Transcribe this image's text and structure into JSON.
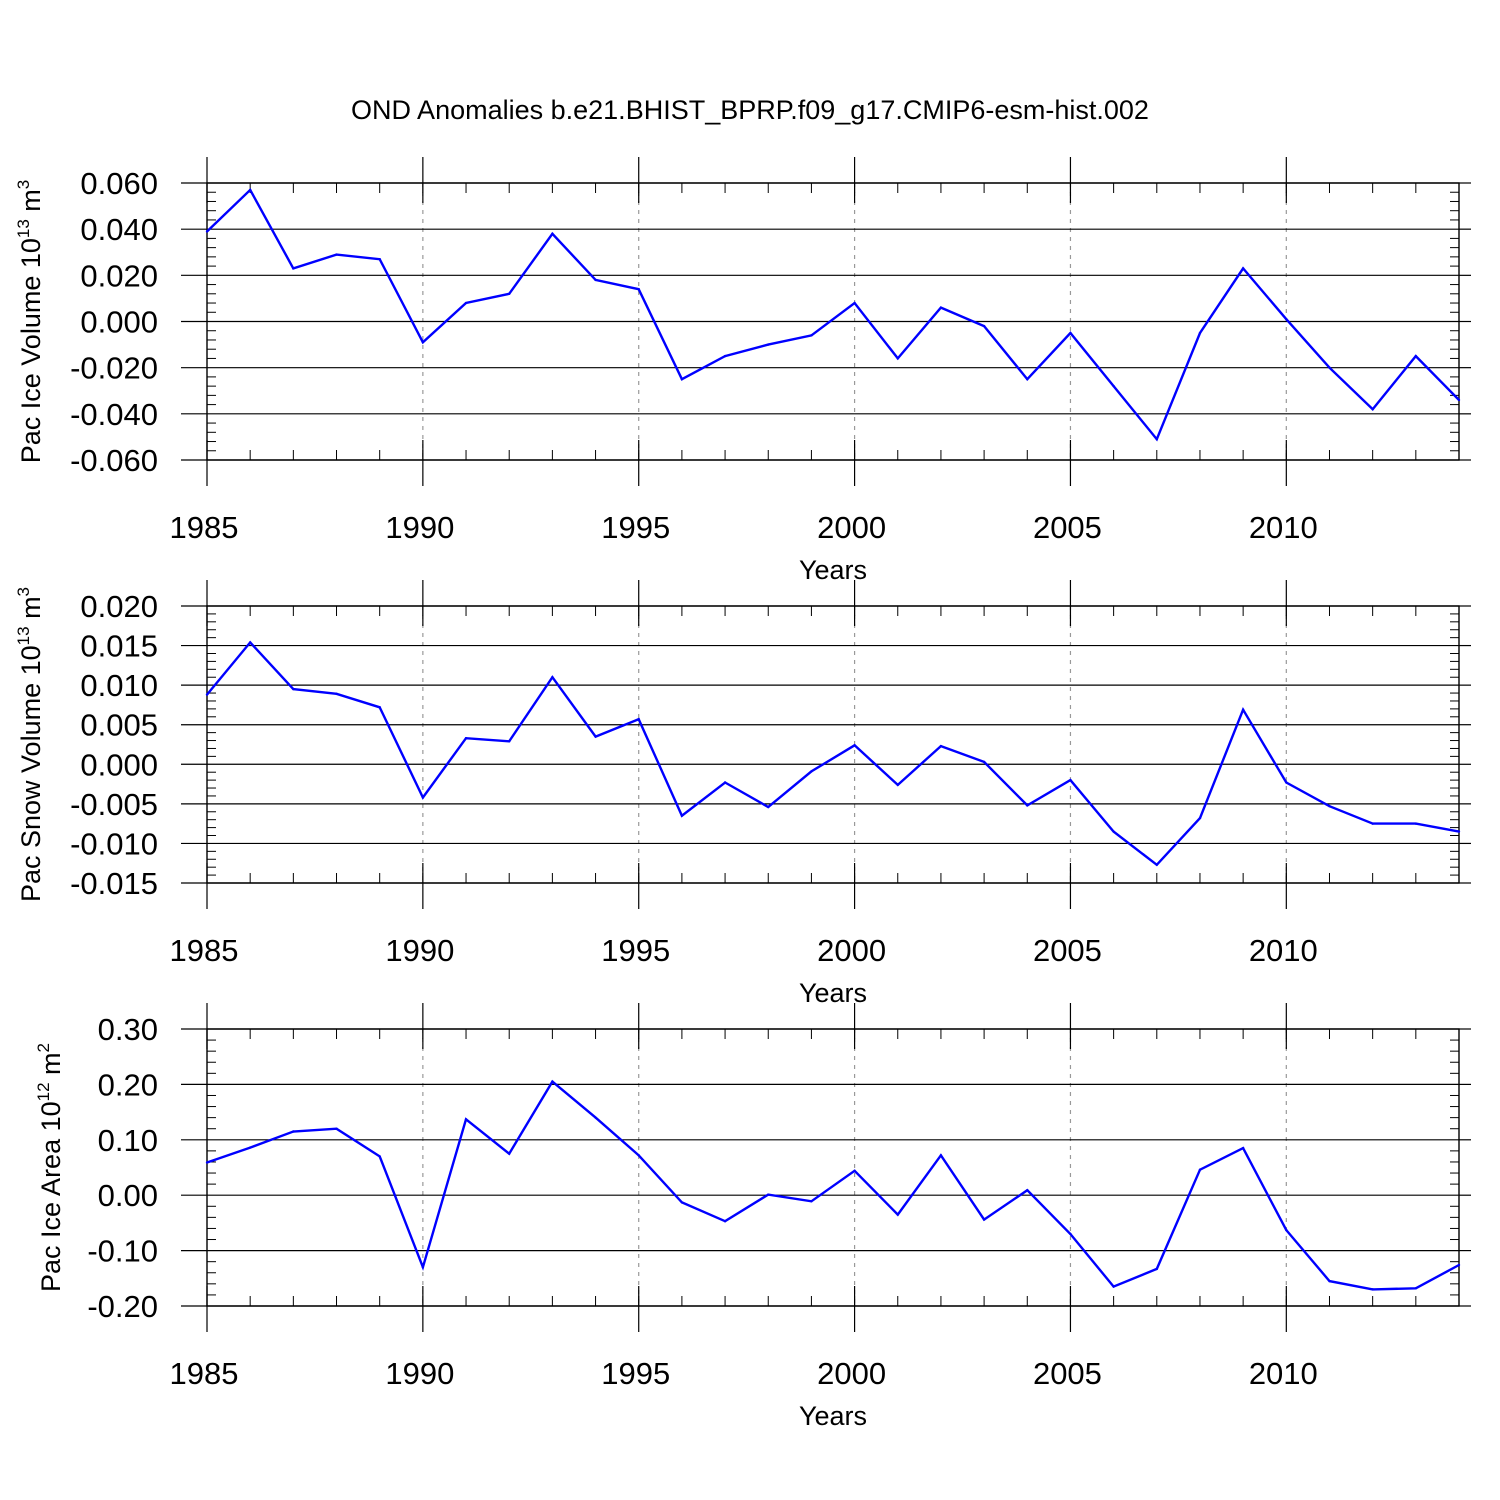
{
  "title": "OND Anomalies b.e21.BHIST_BPRP.f09_g17.CMIP6-esm-hist.002",
  "colors": {
    "line": "#0000ff",
    "axis": "#000000",
    "grid": "#999999"
  },
  "chart_data": [
    {
      "type": "line",
      "ylabel": {
        "main": "Pac Ice Volume 10",
        "sup": "13",
        "unit": " m",
        "unit_sup": "3"
      },
      "xlabel": "Years",
      "xlim": [
        1985,
        2014
      ],
      "ylim": [
        -0.06,
        0.06
      ],
      "yticks": [
        -0.06,
        -0.04,
        -0.02,
        0.0,
        0.02,
        0.04,
        0.06
      ],
      "ytick_labels": [
        "-0.060",
        "-0.040",
        "-0.020",
        "0.000",
        "0.020",
        "0.040",
        "0.060"
      ],
      "xticks": [
        1985,
        1990,
        1995,
        2000,
        2005,
        2010
      ],
      "xtick_labels": [
        "1985",
        "1990",
        "1995",
        "2000",
        "2005",
        "2010"
      ],
      "grid_x": [
        1990,
        1995,
        2000,
        2005,
        2010
      ],
      "x": [
        1985,
        1986,
        1987,
        1988,
        1989,
        1990,
        1991,
        1992,
        1993,
        1994,
        1995,
        1996,
        1997,
        1998,
        1999,
        2000,
        2001,
        2002,
        2003,
        2004,
        2005,
        2006,
        2007,
        2008,
        2009,
        2010,
        2011,
        2012,
        2013,
        2014
      ],
      "values": [
        0.039,
        0.057,
        0.023,
        0.029,
        0.027,
        -0.009,
        0.008,
        0.012,
        0.038,
        0.018,
        0.014,
        -0.025,
        -0.015,
        -0.01,
        -0.006,
        0.008,
        -0.016,
        0.006,
        -0.002,
        -0.025,
        -0.005,
        -0.028,
        -0.051,
        -0.005,
        0.023,
        0.001,
        -0.02,
        -0.038,
        -0.015,
        -0.034
      ]
    },
    {
      "type": "line",
      "ylabel": {
        "main": "Pac Snow Volume 10",
        "sup": "13",
        "unit": " m",
        "unit_sup": "3"
      },
      "xlabel": "Years",
      "xlim": [
        1985,
        2014
      ],
      "ylim": [
        -0.015,
        0.02
      ],
      "yticks": [
        -0.015,
        -0.01,
        -0.005,
        0.0,
        0.005,
        0.01,
        0.015,
        0.02
      ],
      "ytick_labels": [
        "-0.015",
        "-0.010",
        "-0.005",
        "0.000",
        "0.005",
        "0.010",
        "0.015",
        "0.020"
      ],
      "xticks": [
        1985,
        1990,
        1995,
        2000,
        2005,
        2010
      ],
      "xtick_labels": [
        "1985",
        "1990",
        "1995",
        "2000",
        "2005",
        "2010"
      ],
      "grid_x": [
        1990,
        1995,
        2000,
        2005,
        2010
      ],
      "x": [
        1985,
        1986,
        1987,
        1988,
        1989,
        1990,
        1991,
        1992,
        1993,
        1994,
        1995,
        1996,
        1997,
        1998,
        1999,
        2000,
        2001,
        2002,
        2003,
        2004,
        2005,
        2006,
        2007,
        2008,
        2009,
        2010,
        2011,
        2012,
        2013,
        2014
      ],
      "values": [
        0.0088,
        0.0154,
        0.0095,
        0.0089,
        0.0072,
        -0.0042,
        0.0033,
        0.0029,
        0.011,
        0.0035,
        0.0057,
        -0.0065,
        -0.0023,
        -0.0054,
        -0.0009,
        0.0024,
        -0.0026,
        0.0023,
        0.0003,
        -0.0052,
        -0.002,
        -0.0085,
        -0.0127,
        -0.0068,
        0.0069,
        -0.0023,
        -0.0053,
        -0.0075,
        -0.0075,
        -0.0085
      ]
    },
    {
      "type": "line",
      "ylabel": {
        "main": "Pac Ice Area 10",
        "sup": "12",
        "unit": " m",
        "unit_sup": "2"
      },
      "xlabel": "Years",
      "xlim": [
        1985,
        2014
      ],
      "ylim": [
        -0.2,
        0.3
      ],
      "yticks": [
        -0.2,
        -0.1,
        0.0,
        0.1,
        0.2,
        0.3
      ],
      "ytick_labels": [
        "-0.20",
        "-0.10",
        "0.00",
        "0.10",
        "0.20",
        "0.30"
      ],
      "xticks": [
        1985,
        1990,
        1995,
        2000,
        2005,
        2010
      ],
      "xtick_labels": [
        "1985",
        "1990",
        "1995",
        "2000",
        "2005",
        "2010"
      ],
      "grid_x": [
        1990,
        1995,
        2000,
        2005,
        2010
      ],
      "x": [
        1985,
        1986,
        1987,
        1988,
        1989,
        1990,
        1991,
        1992,
        1993,
        1994,
        1995,
        1996,
        1997,
        1998,
        1999,
        2000,
        2001,
        2002,
        2003,
        2004,
        2005,
        2006,
        2007,
        2008,
        2009,
        2010,
        2011,
        2012,
        2013,
        2014
      ],
      "values": [
        0.059,
        0.086,
        0.115,
        0.12,
        0.07,
        -0.13,
        0.137,
        0.075,
        0.205,
        0.14,
        0.072,
        -0.013,
        -0.047,
        0.001,
        -0.011,
        0.044,
        -0.035,
        0.072,
        -0.044,
        0.009,
        -0.07,
        -0.165,
        -0.133,
        0.046,
        0.085,
        -0.063,
        -0.155,
        -0.17,
        -0.168,
        -0.126
      ]
    }
  ]
}
